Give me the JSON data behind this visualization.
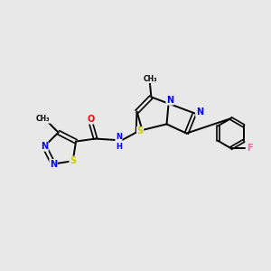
{
  "background_color": "#e8e8e8",
  "bond_color": "#000000",
  "atom_colors": {
    "N": "#0000ee",
    "S": "#cccc00",
    "O": "#ff0000",
    "F": "#ff69b4",
    "C": "#000000",
    "H": "#000000"
  },
  "figsize": [
    3.0,
    3.0
  ],
  "dpi": 100
}
